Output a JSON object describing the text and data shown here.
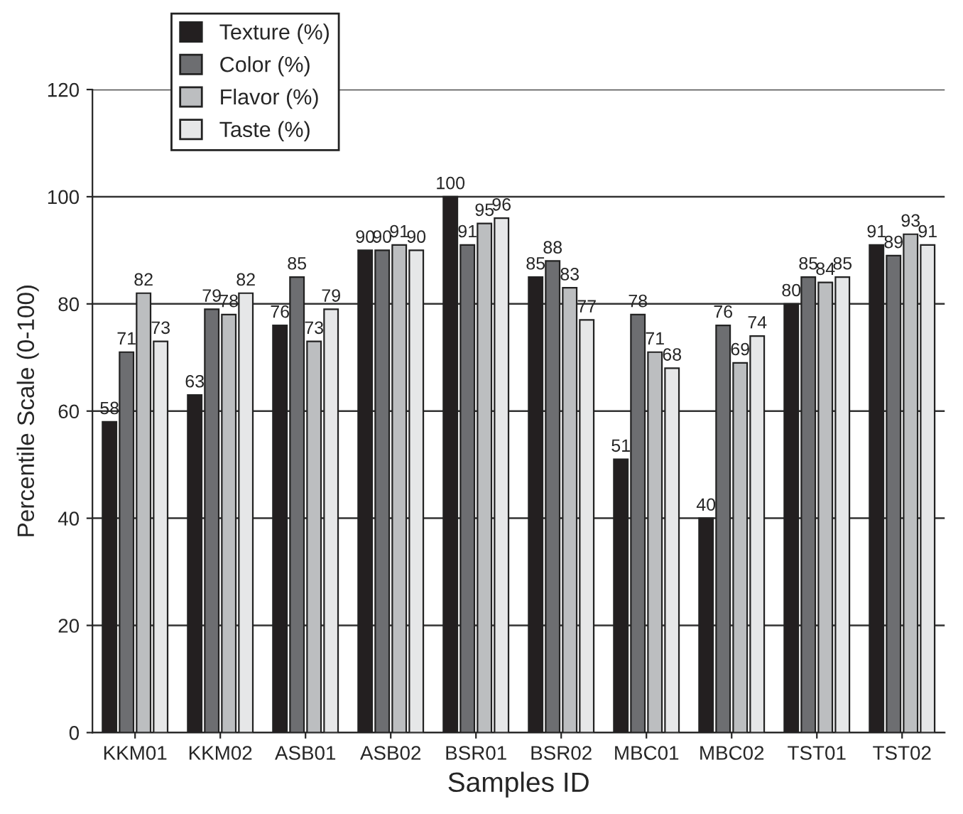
{
  "chart_data": {
    "type": "bar",
    "xlabel": "Samples ID",
    "ylabel": "Percentile Scale (0-100)",
    "categories": [
      "KKM01",
      "KKM02",
      "ASB01",
      "ASB02",
      "BSR01",
      "BSR02",
      "MBC01",
      "MBC02",
      "TST01",
      "TST02"
    ],
    "series": [
      {
        "name": "Texture (%)",
        "color": "#231f20",
        "values": [
          58,
          63,
          76,
          90,
          100,
          85,
          51,
          40,
          80,
          91
        ]
      },
      {
        "name": "Color (%)",
        "color": "#6d6e71",
        "values": [
          71,
          79,
          85,
          90,
          91,
          88,
          78,
          76,
          85,
          89
        ]
      },
      {
        "name": "Flavor (%)",
        "color": "#bcbec0",
        "values": [
          82,
          78,
          73,
          91,
          95,
          83,
          71,
          69,
          84,
          93
        ]
      },
      {
        "name": "Taste (%)",
        "color": "#e6e7e8",
        "values": [
          73,
          82,
          79,
          90,
          96,
          77,
          68,
          74,
          85,
          91
        ]
      }
    ],
    "ylim": [
      0,
      120
    ],
    "yticks": [
      0,
      20,
      40,
      60,
      80,
      100,
      120
    ],
    "grid": "y",
    "legend": "top left",
    "data_labels": true
  }
}
